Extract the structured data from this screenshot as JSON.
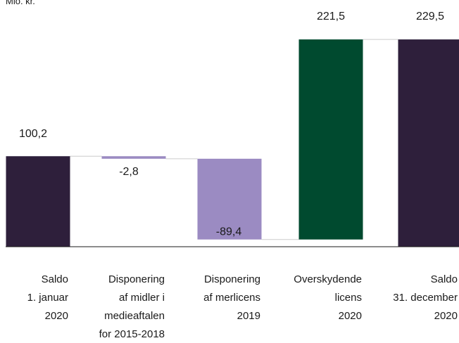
{
  "chart_data": {
    "type": "waterfall",
    "unit": "Mio. kr.",
    "categories": [
      [
        "Saldo",
        "1. januar",
        "2020"
      ],
      [
        "Disponering",
        "af midler i",
        "medieaftalen",
        "for 2015-2018"
      ],
      [
        "Disponering",
        "af merlicens",
        "2019"
      ],
      [
        "Overskydende",
        "licens",
        "2020"
      ],
      [
        "Saldo",
        "31. december",
        "2020"
      ]
    ],
    "steps": [
      {
        "kind": "total",
        "value": 100.2,
        "label": "100,2"
      },
      {
        "kind": "delta",
        "value": -2.8,
        "label": "-2,8"
      },
      {
        "kind": "delta",
        "value": -89.4,
        "label": "-89,4"
      },
      {
        "kind": "delta",
        "value": 221.5,
        "label": "221,5"
      },
      {
        "kind": "total",
        "value": 229.5,
        "label": "229,5"
      }
    ],
    "colors": {
      "total": "#2e1f3b",
      "negative": "#9b8bc2",
      "positive": "#004a2f",
      "connector": "#cccccc",
      "axis": "#1a1a1a"
    }
  }
}
